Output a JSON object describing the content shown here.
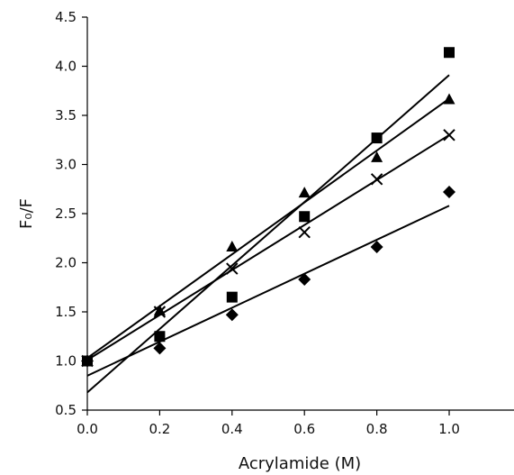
{
  "chart_data": {
    "type": "scatter",
    "title": "",
    "xlabel": "Acrylamide (M)",
    "ylabel": "F₀/F",
    "xlim": [
      0,
      1.2
    ],
    "ylim": [
      0.5,
      4.5
    ],
    "x_ticks": [
      "0.0",
      "0.2",
      "0.4",
      "0.6",
      "0.8",
      "1.0"
    ],
    "y_ticks": [
      "0.5",
      "1.0",
      "1.5",
      "2.0",
      "2.5",
      "3.0",
      "3.5",
      "4.0",
      "4.5"
    ],
    "grid": false,
    "legend": "none",
    "series": [
      {
        "marker": "square",
        "x": [
          0.0,
          0.2,
          0.4,
          0.6,
          0.8,
          1.0
        ],
        "y": [
          1.0,
          1.25,
          1.65,
          2.47,
          3.27,
          4.14
        ],
        "fit": {
          "slope": 3.23,
          "intercept": 0.68
        }
      },
      {
        "marker": "triangle",
        "x": [
          0.0,
          0.2,
          0.4,
          0.6,
          0.8,
          1.0
        ],
        "y": [
          1.0,
          1.51,
          2.16,
          2.71,
          3.07,
          3.66
        ],
        "fit": {
          "slope": 2.64,
          "intercept": 1.03
        }
      },
      {
        "marker": "cross",
        "x": [
          0.0,
          0.2,
          0.4,
          0.6,
          0.8,
          1.0
        ],
        "y": [
          1.0,
          1.5,
          1.94,
          2.31,
          2.85,
          3.3
        ],
        "fit": {
          "slope": 2.29,
          "intercept": 1.01
        }
      },
      {
        "marker": "diamond",
        "x": [
          0.0,
          0.2,
          0.4,
          0.6,
          0.8,
          1.0
        ],
        "y": [
          1.0,
          1.13,
          1.47,
          1.83,
          2.16,
          2.72
        ],
        "fit": {
          "slope": 1.73,
          "intercept": 0.85
        }
      }
    ]
  }
}
